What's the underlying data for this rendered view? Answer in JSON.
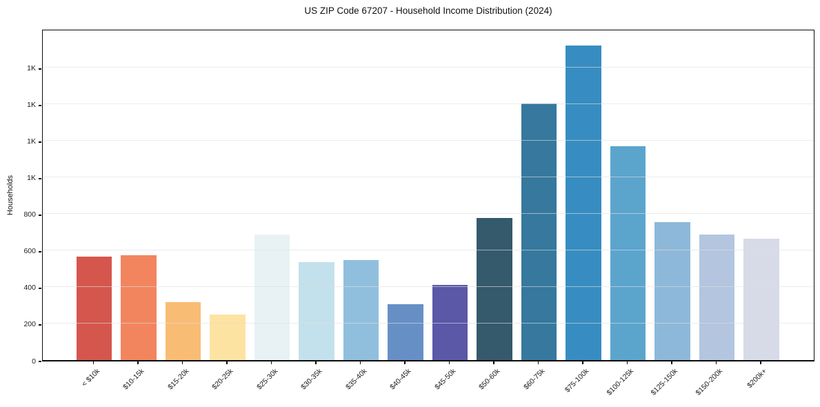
{
  "chart_data": {
    "type": "bar",
    "title": "US ZIP Code 67207 - Household Income Distribution (2024)",
    "xlabel": "",
    "ylabel": "Households",
    "categories": [
      "< $10k",
      "$10-15k",
      "$15-20k",
      "$20-25k",
      "$25-30k",
      "$30-35k",
      "$35-40k",
      "$40-45k",
      "$45-50k",
      "$50-60k",
      "$60-75k",
      "$75-100k",
      "$100-125k",
      "$125-150k",
      "$150-200k",
      "$200k+"
    ],
    "values": [
      565,
      573,
      318,
      249,
      688,
      534,
      547,
      304,
      410,
      779,
      1402,
      1719,
      1168,
      754,
      686,
      663
    ],
    "bar_colors": [
      "#d5564d",
      "#f2855e",
      "#f9bc74",
      "#fde3a1",
      "#e8f2f5",
      "#c3e1ec",
      "#90bfdd",
      "#6690c5",
      "#5a58a7",
      "#355a6c",
      "#36789e",
      "#378dc1",
      "#5ba5cd",
      "#8eb8d9",
      "#b3c5df",
      "#d7dae7"
    ],
    "ylim": [
      0,
      1815
    ],
    "yticks": [
      {
        "value": 0,
        "label": "0"
      },
      {
        "value": 200,
        "label": "200"
      },
      {
        "value": 400,
        "label": "400"
      },
      {
        "value": 600,
        "label": "600"
      },
      {
        "value": 800,
        "label": "800"
      },
      {
        "value": 1000,
        "label": "1K"
      },
      {
        "value": 1200,
        "label": "1K"
      },
      {
        "value": 1400,
        "label": "1K"
      },
      {
        "value": 1600,
        "label": "1K"
      }
    ],
    "grid": "horizontal",
    "legend": "none",
    "background_color": "#ffffff",
    "spine_color": "#0a0a0a"
  }
}
